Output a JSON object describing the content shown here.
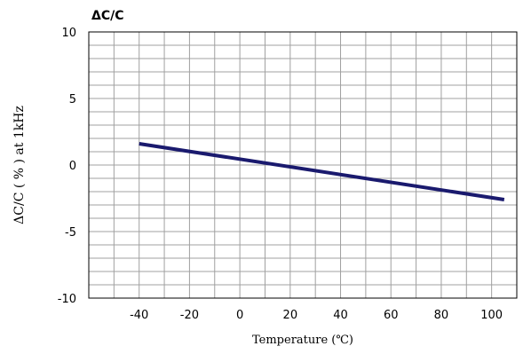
{
  "chart_data": {
    "type": "line",
    "title": "ΔC/C",
    "xlabel": "Temperature (℃)",
    "ylabel": "ΔC/C ( % ) at 1kHz",
    "xlim": [
      -60,
      110
    ],
    "ylim": [
      -10,
      10
    ],
    "x_ticks": [
      -40,
      -20,
      0,
      20,
      40,
      60,
      80,
      100
    ],
    "y_ticks": [
      -10,
      -5,
      0,
      5,
      10
    ],
    "grid": true,
    "colors": {
      "series": "#1a1a6e",
      "grid": "#a0a0a0",
      "frame": "#000000"
    },
    "series": [
      {
        "x": [
          -40,
          105
        ],
        "y": [
          1.6,
          -2.6
        ]
      }
    ]
  }
}
